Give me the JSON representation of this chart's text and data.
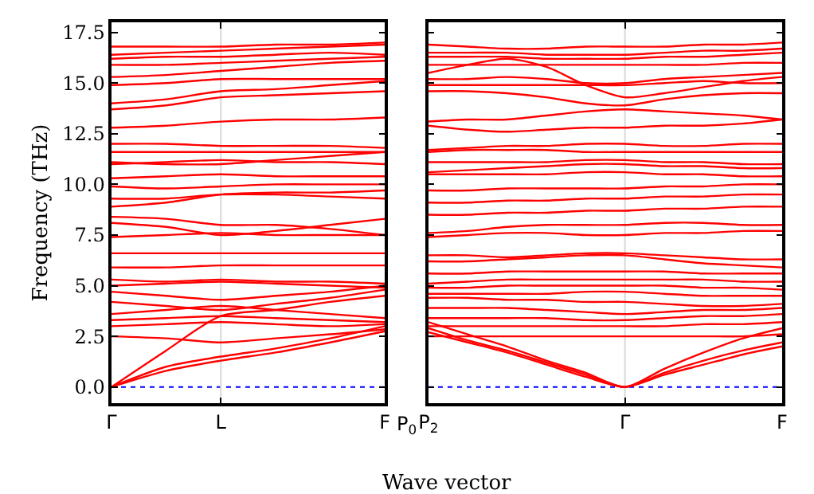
{
  "chart_data": [
    {
      "type": "line",
      "ylabel": "Frequency (THz)",
      "xlabel": "Wave vector",
      "categories": [
        "Γ",
        null,
        "L",
        null,
        null,
        "F"
      ],
      "annotations": [
        "P$_{0}$"
      ],
      "ylim": [
        -0.8,
        18.0
      ],
      "yticks": [
        {
          "value": 0,
          "label": "0.0"
        },
        2.5,
        {
          "value": 5,
          "label": "5.0"
        },
        7.5,
        {
          "value": 10,
          "label": "10.0"
        },
        12.5,
        {
          "value": 15,
          "label": "15.0"
        },
        17.5
      ],
      "grid": false,
      "marker": "none",
      "line_style": "solid",
      "ref_lines": [
        {
          "axis": "y",
          "value": 0,
          "color": "#0000ff",
          "line_style": "dotted"
        },
        {
          "axis": "x",
          "value": "L",
          "color": "#d8d8d8",
          "line_style": "solid"
        }
      ],
      "series": [
        {
          "color": "#ff0000",
          "values": [
            0,
            1.0,
            1.5,
            1.9,
            2.4,
            3.0
          ]
        },
        {
          "color": "#ff0000",
          "values": [
            0,
            0.8,
            1.3,
            1.7,
            2.2,
            2.75
          ]
        },
        {
          "color": "#ff0000",
          "values": [
            0,
            1.8,
            3.5,
            3.8,
            4.2,
            4.5
          ]
        },
        {
          "color": "#ff0000",
          "values": [
            2.5,
            2.4,
            2.2,
            2.4,
            2.6,
            2.85
          ]
        },
        {
          "color": "#ff0000",
          "values": [
            3.0,
            3.1,
            3.2,
            3.1,
            3.0,
            3.1
          ]
        },
        {
          "color": "#ff0000",
          "values": [
            3.3,
            3.4,
            3.5,
            3.4,
            3.3,
            3.2
          ]
        },
        {
          "color": "#ff0000",
          "values": [
            3.6,
            3.8,
            4.0,
            3.8,
            3.6,
            3.4
          ]
        },
        {
          "color": "#ff0000",
          "values": [
            4.2,
            4.0,
            3.8,
            4.1,
            4.4,
            4.8
          ]
        },
        {
          "color": "#ff0000",
          "values": [
            4.7,
            4.5,
            4.3,
            4.5,
            4.7,
            5.0
          ]
        },
        {
          "color": "#ff0000",
          "values": [
            5.0,
            5.1,
            5.2,
            5.1,
            5.0,
            4.9
          ]
        },
        {
          "color": "#ff0000",
          "values": [
            5.3,
            5.2,
            5.3,
            5.2,
            5.2,
            5.1
          ]
        },
        {
          "color": "#ff0000",
          "values": [
            5.9,
            5.9,
            6.0,
            6.0,
            6.0,
            6.0
          ]
        },
        {
          "color": "#ff0000",
          "values": [
            6.6,
            6.6,
            6.6,
            6.6,
            6.6,
            6.6
          ]
        },
        {
          "color": "#ff0000",
          "values": [
            7.4,
            7.5,
            7.6,
            7.5,
            7.5,
            7.5
          ]
        },
        {
          "color": "#ff0000",
          "values": [
            8.1,
            7.9,
            7.5,
            7.7,
            8.0,
            8.3
          ]
        },
        {
          "color": "#ff0000",
          "values": [
            8.4,
            8.3,
            8.0,
            8.0,
            7.8,
            7.5
          ]
        },
        {
          "color": "#ff0000",
          "values": [
            8.9,
            9.1,
            9.5,
            9.6,
            9.6,
            9.7
          ]
        },
        {
          "color": "#ff0000",
          "values": [
            9.3,
            9.3,
            9.5,
            9.5,
            9.4,
            9.3
          ]
        },
        {
          "color": "#ff0000",
          "values": [
            9.9,
            9.8,
            9.9,
            10.0,
            10.0,
            10.0
          ]
        },
        {
          "color": "#ff0000",
          "values": [
            10.3,
            10.4,
            10.5,
            10.4,
            10.4,
            10.4
          ]
        },
        {
          "color": "#ff0000",
          "values": [
            11.0,
            11.1,
            11.2,
            11.1,
            11.1,
            11.0
          ]
        },
        {
          "color": "#ff0000",
          "values": [
            11.1,
            11.0,
            11.0,
            11.2,
            11.4,
            11.6
          ]
        },
        {
          "color": "#ff0000",
          "values": [
            11.6,
            11.6,
            11.6,
            11.6,
            11.6,
            11.6
          ]
        },
        {
          "color": "#ff0000",
          "values": [
            12.0,
            12.0,
            11.9,
            11.9,
            11.9,
            11.8
          ]
        },
        {
          "color": "#ff0000",
          "values": [
            12.8,
            12.9,
            13.1,
            13.2,
            13.2,
            13.3
          ]
        },
        {
          "color": "#ff0000",
          "values": [
            13.7,
            13.9,
            14.3,
            14.4,
            14.5,
            14.6
          ]
        },
        {
          "color": "#ff0000",
          "values": [
            14.0,
            14.2,
            14.6,
            14.7,
            14.9,
            15.1
          ]
        },
        {
          "color": "#ff0000",
          "values": [
            14.9,
            15.0,
            15.2,
            15.2,
            15.2,
            15.2
          ]
        },
        {
          "color": "#ff0000",
          "values": [
            15.3,
            15.4,
            15.6,
            15.8,
            16.0,
            16.1
          ]
        },
        {
          "color": "#ff0000",
          "values": [
            15.9,
            15.9,
            16.0,
            16.1,
            16.2,
            16.3
          ]
        },
        {
          "color": "#ff0000",
          "values": [
            16.2,
            16.3,
            16.3,
            16.4,
            16.5,
            16.4
          ]
        },
        {
          "color": "#ff0000",
          "values": [
            16.4,
            16.5,
            16.6,
            16.7,
            16.8,
            16.9
          ]
        },
        {
          "color": "#ff0000",
          "values": [
            16.8,
            16.8,
            16.8,
            16.9,
            16.9,
            17.0
          ]
        }
      ]
    },
    {
      "type": "line",
      "categories": [
        "P$_{2}$",
        null,
        null,
        null,
        null,
        "Γ",
        null,
        null,
        null,
        "F"
      ],
      "ylim": [
        -0.8,
        18.0
      ],
      "yticks": [
        0,
        2.5,
        5,
        7.5,
        10,
        12.5,
        15,
        17.5
      ],
      "tick_labels": "x",
      "grid": false,
      "marker": "none",
      "line_style": "solid",
      "ref_lines": [
        {
          "axis": "y",
          "value": 0,
          "color": "#0000ff",
          "line_style": "dotted"
        },
        {
          "axis": "x",
          "value": "Γ",
          "color": "#d8d8d8",
          "line_style": "solid"
        }
      ],
      "series": [
        {
          "color": "#ff0000",
          "values": [
            2.7,
            2.2,
            1.7,
            1.1,
            0.5,
            0,
            0.6,
            1.1,
            1.6,
            2.0
          ]
        },
        {
          "color": "#ff0000",
          "values": [
            2.9,
            2.3,
            1.8,
            1.2,
            0.6,
            0,
            0.7,
            1.3,
            1.8,
            2.2
          ]
        },
        {
          "color": "#ff0000",
          "values": [
            3.2,
            2.6,
            2.0,
            1.3,
            0.7,
            0,
            0.9,
            1.7,
            2.4,
            2.9
          ]
        },
        {
          "color": "#ff0000",
          "values": [
            2.5,
            2.5,
            2.5,
            2.5,
            2.5,
            2.5,
            2.5,
            2.5,
            2.5,
            2.6
          ]
        },
        {
          "color": "#ff0000",
          "values": [
            3.0,
            3.0,
            3.0,
            3.0,
            3.0,
            3.0,
            3.0,
            3.1,
            3.1,
            3.2
          ]
        },
        {
          "color": "#ff0000",
          "values": [
            3.4,
            3.4,
            3.4,
            3.4,
            3.3,
            3.3,
            3.4,
            3.5,
            3.5,
            3.6
          ]
        },
        {
          "color": "#ff0000",
          "values": [
            3.9,
            3.9,
            3.9,
            3.8,
            3.7,
            3.6,
            3.7,
            3.8,
            3.8,
            3.9
          ]
        },
        {
          "color": "#ff0000",
          "values": [
            4.4,
            4.4,
            4.3,
            4.3,
            4.2,
            4.2,
            4.1,
            4.0,
            4.0,
            4.1
          ]
        },
        {
          "color": "#ff0000",
          "values": [
            4.6,
            4.6,
            4.6,
            4.6,
            4.7,
            4.7,
            4.6,
            4.5,
            4.5,
            4.5
          ]
        },
        {
          "color": "#ff0000",
          "values": [
            4.9,
            4.9,
            5.0,
            5.0,
            5.0,
            5.0,
            5.0,
            4.9,
            4.9,
            4.8
          ]
        },
        {
          "color": "#ff0000",
          "values": [
            5.1,
            5.2,
            5.3,
            5.3,
            5.3,
            5.3,
            5.3,
            5.3,
            5.2,
            5.2
          ]
        },
        {
          "color": "#ff0000",
          "values": [
            5.6,
            5.6,
            5.7,
            5.7,
            5.7,
            5.7,
            5.7,
            5.6,
            5.6,
            5.6
          ]
        },
        {
          "color": "#ff0000",
          "values": [
            6.2,
            6.2,
            6.3,
            6.4,
            6.5,
            6.5,
            6.3,
            6.1,
            6.0,
            5.9
          ]
        },
        {
          "color": "#ff0000",
          "values": [
            6.5,
            6.5,
            6.4,
            6.5,
            6.6,
            6.6,
            6.5,
            6.4,
            6.3,
            6.3
          ]
        },
        {
          "color": "#ff0000",
          "values": [
            7.4,
            7.5,
            7.6,
            7.6,
            7.5,
            7.5,
            7.6,
            7.6,
            7.7,
            7.7
          ]
        },
        {
          "color": "#ff0000",
          "values": [
            7.6,
            7.7,
            7.9,
            8.0,
            8.0,
            8.0,
            8.1,
            8.1,
            8.0,
            8.0
          ]
        },
        {
          "color": "#ff0000",
          "values": [
            8.5,
            8.5,
            8.6,
            8.6,
            8.7,
            8.7,
            8.8,
            8.8,
            8.9,
            8.9
          ]
        },
        {
          "color": "#ff0000",
          "values": [
            9.1,
            9.1,
            9.2,
            9.2,
            9.3,
            9.3,
            9.4,
            9.4,
            9.5,
            9.5
          ]
        },
        {
          "color": "#ff0000",
          "values": [
            9.7,
            9.7,
            9.8,
            9.8,
            9.8,
            9.8,
            9.9,
            9.9,
            10.0,
            10.0
          ]
        },
        {
          "color": "#ff0000",
          "values": [
            10.5,
            10.5,
            10.5,
            10.5,
            10.6,
            10.6,
            10.5,
            10.5,
            10.4,
            10.4
          ]
        },
        {
          "color": "#ff0000",
          "values": [
            10.6,
            10.7,
            10.8,
            10.9,
            11.0,
            11.0,
            10.9,
            10.9,
            10.8,
            10.8
          ]
        },
        {
          "color": "#ff0000",
          "values": [
            11.1,
            11.1,
            11.1,
            11.1,
            11.2,
            11.2,
            11.1,
            11.1,
            11.0,
            11.0
          ]
        },
        {
          "color": "#ff0000",
          "values": [
            11.6,
            11.7,
            11.7,
            11.7,
            11.6,
            11.6,
            11.6,
            11.6,
            11.6,
            11.6
          ]
        },
        {
          "color": "#ff0000",
          "values": [
            11.7,
            11.8,
            11.9,
            11.9,
            12.0,
            12.0,
            11.9,
            11.9,
            12.0,
            12.0
          ]
        },
        {
          "color": "#ff0000",
          "values": [
            12.9,
            12.7,
            12.6,
            12.7,
            12.8,
            12.8,
            12.9,
            12.9,
            13.0,
            13.2
          ]
        },
        {
          "color": "#ff0000",
          "values": [
            13.1,
            13.2,
            13.2,
            13.4,
            13.6,
            13.7,
            13.6,
            13.5,
            13.4,
            13.2
          ]
        },
        {
          "color": "#ff0000",
          "values": [
            14.6,
            14.6,
            14.5,
            14.3,
            14.0,
            13.9,
            14.2,
            14.4,
            14.5,
            14.5
          ]
        },
        {
          "color": "#ff0000",
          "values": [
            14.9,
            14.9,
            14.9,
            14.9,
            14.9,
            14.9,
            15.0,
            15.1,
            15.0,
            15.0
          ]
        },
        {
          "color": "#ff0000",
          "values": [
            15.2,
            15.2,
            15.3,
            15.2,
            15.0,
            15.0,
            15.2,
            15.3,
            15.4,
            15.5
          ]
        },
        {
          "color": "#ff0000",
          "values": [
            15.5,
            15.9,
            16.2,
            15.8,
            14.9,
            14.3,
            14.5,
            14.8,
            15.1,
            15.3
          ]
        },
        {
          "color": "#ff0000",
          "values": [
            15.9,
            15.9,
            15.9,
            15.9,
            15.9,
            15.9,
            15.9,
            15.9,
            16.0,
            16.0
          ]
        },
        {
          "color": "#ff0000",
          "values": [
            16.3,
            16.3,
            16.3,
            16.2,
            16.2,
            16.2,
            16.3,
            16.3,
            16.4,
            16.5
          ]
        },
        {
          "color": "#ff0000",
          "values": [
            16.5,
            16.5,
            16.5,
            16.4,
            16.4,
            16.4,
            16.5,
            16.6,
            16.6,
            16.7
          ]
        },
        {
          "color": "#ff0000",
          "values": [
            16.9,
            16.8,
            16.7,
            16.7,
            16.8,
            16.8,
            16.8,
            16.9,
            16.9,
            17.0
          ]
        }
      ]
    }
  ]
}
